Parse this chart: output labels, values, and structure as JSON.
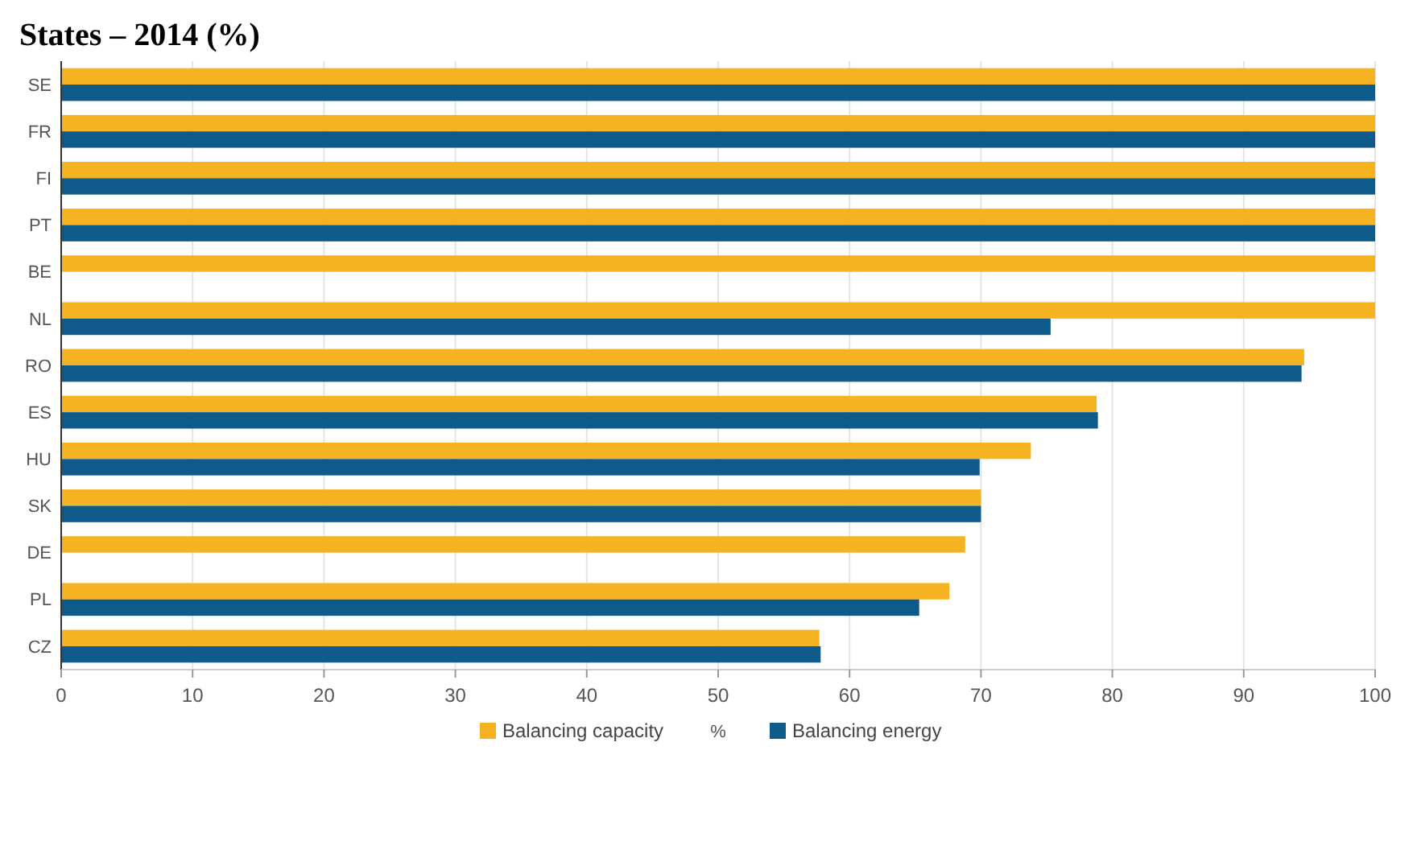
{
  "chart_data": {
    "type": "bar",
    "orientation": "horizontal",
    "title": "States – 2014 (%)",
    "xlabel": "%",
    "categories": [
      "SE",
      "FR",
      "FI",
      "PT",
      "BE",
      "NL",
      "RO",
      "ES",
      "HU",
      "SK",
      "DE",
      "PL",
      "CZ"
    ],
    "series": [
      {
        "name": "Balancing capacity",
        "color": "#f5b321",
        "values": [
          100,
          100,
          100,
          100,
          100,
          100,
          94.6,
          78.8,
          73.8,
          70,
          68.8,
          67.6,
          57.7
        ]
      },
      {
        "name": "Balancing energy",
        "color": "#0e5a8a",
        "values": [
          100,
          100,
          100,
          100,
          null,
          75.3,
          94.4,
          78.9,
          69.9,
          70,
          null,
          65.3,
          57.8
        ]
      }
    ],
    "xlim": [
      0,
      100
    ],
    "xticks": [
      0,
      10,
      20,
      30,
      40,
      50,
      60,
      70,
      80,
      90,
      100
    ],
    "grid": "x",
    "legend": "bottom"
  }
}
